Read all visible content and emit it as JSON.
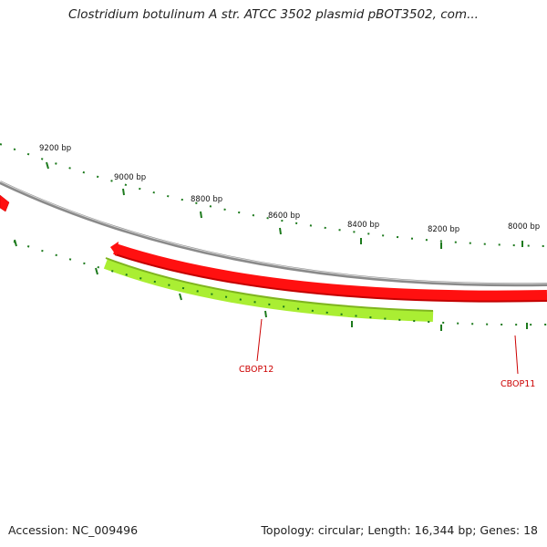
{
  "title": "Clostridium botulinum A str. ATCC 3502 plasmid pBOT3502, com...",
  "footer": {
    "accession": "Accession: NC_009496",
    "summary": "Topology: circular; Length: 16,344 bp; Genes: 18"
  },
  "colors": {
    "backbone": "#8a8a8a",
    "gene_forward": "#ff1010",
    "gene_reverse": "#aaee33",
    "tick": "#1d7a1d",
    "label": "#cc0000"
  },
  "map": {
    "scale_labels": [
      "9200 bp",
      "9000 bp",
      "8800 bp",
      "8600 bp",
      "8400 bp",
      "8200 bp",
      "8000 bp"
    ],
    "genes": [
      {
        "name": "CBOP12",
        "strand": "reverse",
        "color": "gene_reverse"
      },
      {
        "name": "CBOP11",
        "strand": "forward",
        "color": "gene_forward"
      }
    ]
  }
}
